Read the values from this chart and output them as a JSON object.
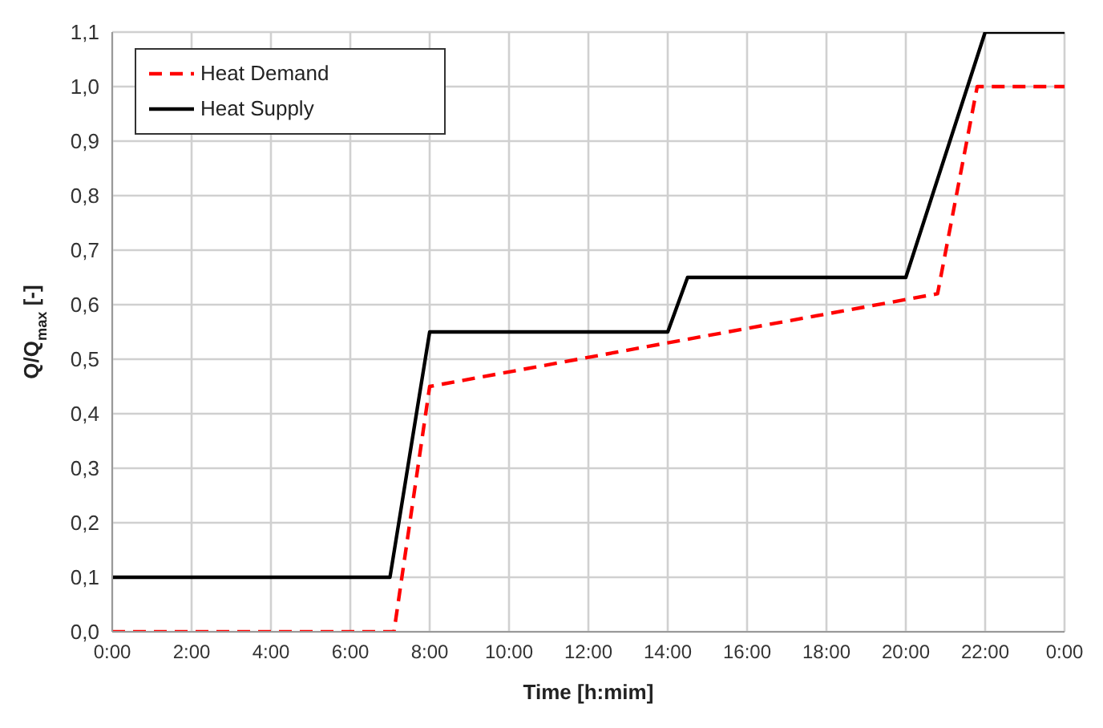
{
  "chart_data": {
    "type": "line",
    "xlabel": "Time [h:mim]",
    "ylabel": "Q/Q$_{max}$ [-]",
    "xlim": [
      0,
      24
    ],
    "xticks": [
      {
        "value": 0,
        "label": "0:00"
      },
      {
        "value": 2,
        "label": "2:00"
      },
      {
        "value": 4,
        "label": "4:00"
      },
      {
        "value": 6,
        "label": "6:00"
      },
      {
        "value": 8,
        "label": "8:00"
      },
      {
        "value": 10,
        "label": "10:00"
      },
      {
        "value": 12,
        "label": "12:00"
      },
      {
        "value": 14,
        "label": "14:00"
      },
      {
        "value": 16,
        "label": "16:00"
      },
      {
        "value": 18,
        "label": "18:00"
      },
      {
        "value": 20,
        "label": "20:00"
      },
      {
        "value": 22,
        "label": "22:00"
      },
      {
        "value": 24,
        "label": "0:00"
      }
    ],
    "ylim": [
      0,
      1.1
    ],
    "yticks": [
      {
        "value": 0,
        "label": "0,0"
      },
      {
        "value": 0.1,
        "label": "0,1"
      },
      {
        "value": 0.2,
        "label": "0,2"
      },
      {
        "value": 0.3,
        "label": "0,3"
      },
      {
        "value": 0.4,
        "label": "0,4"
      },
      {
        "value": 0.5,
        "label": "0,5"
      },
      {
        "value": 0.6,
        "label": "0,6"
      },
      {
        "value": 0.7,
        "label": "0,7"
      },
      {
        "value": 0.8,
        "label": "0,8"
      },
      {
        "value": 0.9,
        "label": "0,9"
      },
      {
        "value": 1.0,
        "label": "1,0"
      },
      {
        "value": 1.1,
        "label": "1,1"
      }
    ],
    "grid": true,
    "legend": "top left",
    "marker": "none",
    "series": [
      {
        "name": "Heat Demand",
        "color": "#ff0000",
        "line_style": "dashed",
        "x": [
          0,
          7.1,
          8,
          14,
          20.8,
          21.8,
          24
        ],
        "values": [
          0,
          0,
          0.45,
          0.53,
          0.62,
          1.0,
          1.0
        ]
      },
      {
        "name": "Heat Supply",
        "color": "#000000",
        "line_style": "solid",
        "x": [
          0,
          7,
          8,
          14,
          14.5,
          20,
          22,
          24
        ],
        "values": [
          0.1,
          0.1,
          0.55,
          0.55,
          0.65,
          0.65,
          1.1,
          1.1
        ]
      }
    ]
  }
}
